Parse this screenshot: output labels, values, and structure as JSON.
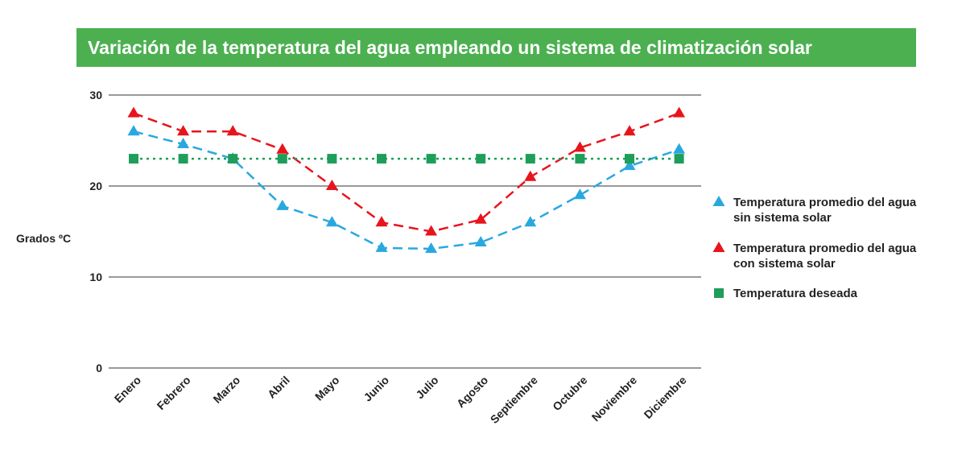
{
  "chart_data": {
    "type": "line",
    "title": "Variación de la temperatura del agua empleando un sistema de climatización solar",
    "ylabel": "Grados ºC",
    "xlabel": "",
    "ylim": [
      0,
      30
    ],
    "yticks": [
      0,
      10,
      20,
      30
    ],
    "grid": true,
    "legend_position": "right",
    "categories": [
      "Enero",
      "Febrero",
      "Marzo",
      "Abril",
      "Mayo",
      "Junio",
      "Julio",
      "Agosto",
      "Septiembre",
      "Octubre",
      "Noviembre",
      "Diciembre"
    ],
    "series": [
      {
        "name": "Temperatura promedio del agua sin sistema solar",
        "legend_lines": [
          "Temperatura promedio del agua",
          "sin sistema solar"
        ],
        "color": "#29a8e0",
        "marker": "triangle",
        "line": "dashed",
        "values": [
          26,
          24.6,
          23,
          17.8,
          16,
          13.2,
          13.1,
          13.8,
          16,
          19,
          22.2,
          24
        ]
      },
      {
        "name": "Temperatura promedio del agua con sistema solar",
        "legend_lines": [
          "Temperatura promedio del agua",
          "con sistema solar"
        ],
        "color": "#e8141c",
        "marker": "triangle",
        "line": "dashed",
        "values": [
          28,
          26,
          26,
          24,
          20,
          16,
          15,
          16.3,
          21,
          24.2,
          26,
          28
        ]
      },
      {
        "name": "Temperatura deseada",
        "legend_lines": [
          "Temperatura deseada"
        ],
        "color": "#1e9e5a",
        "marker": "square",
        "line": "dotted",
        "values": [
          23,
          23,
          23,
          23,
          23,
          23,
          23,
          23,
          23,
          23,
          23,
          23
        ]
      }
    ]
  }
}
